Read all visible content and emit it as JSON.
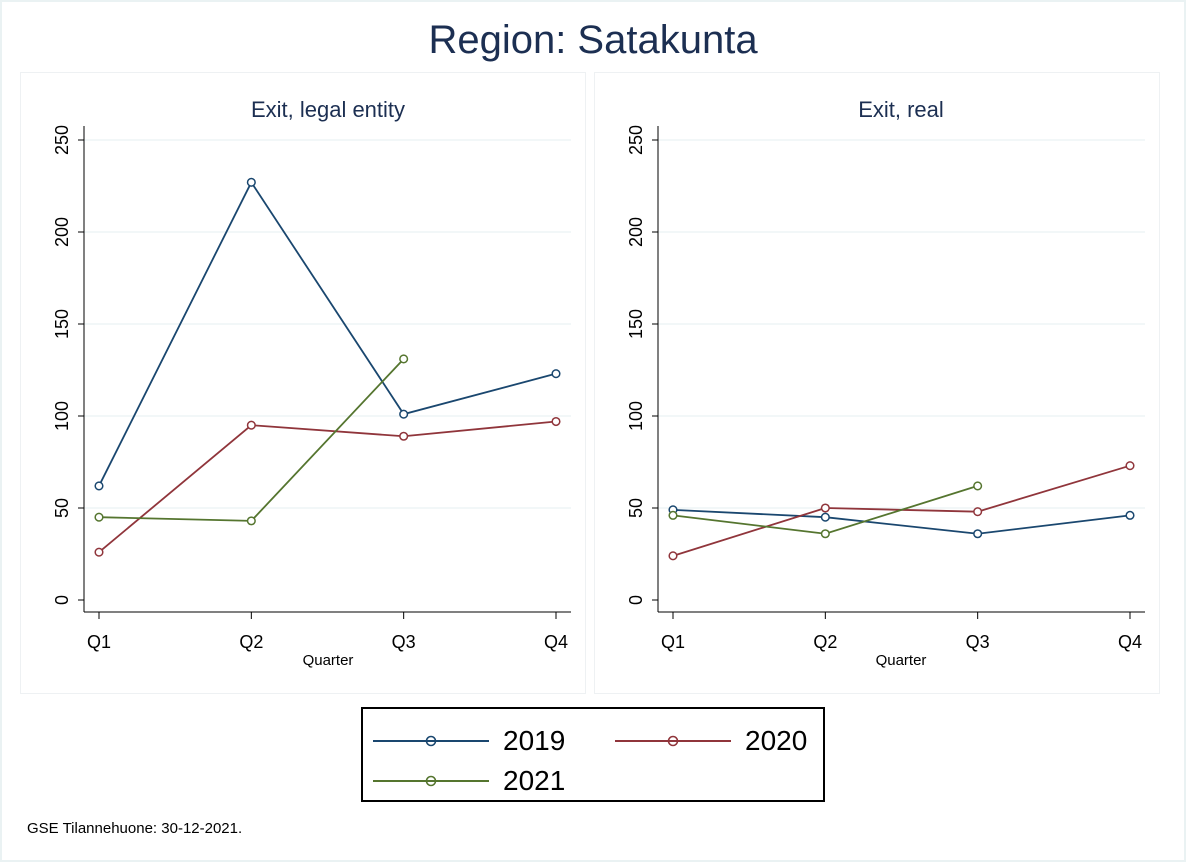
{
  "title": "Region: Satakunta",
  "footnote": "GSE Tilannehuone: 30-12-2021.",
  "colors": {
    "2019": "#1a476f",
    "2020": "#90353b",
    "2021": "#55752f",
    "grid": "#eaf2f3",
    "axis": "#000000"
  },
  "chart_data": [
    {
      "type": "line",
      "title": "Exit, legal entity",
      "xlabel": "Quarter",
      "ylabel": "",
      "categories": [
        "Q1",
        "Q2",
        "Q3",
        "Q4"
      ],
      "ylim": [
        0,
        250
      ],
      "yticks": [
        0,
        50,
        100,
        150,
        200,
        250
      ],
      "grid": true,
      "series": [
        {
          "name": "2019",
          "values": [
            62,
            227,
            101,
            123
          ]
        },
        {
          "name": "2020",
          "values": [
            26,
            95,
            89,
            97
          ]
        },
        {
          "name": "2021",
          "values": [
            45,
            43,
            131,
            null
          ]
        }
      ]
    },
    {
      "type": "line",
      "title": "Exit, real",
      "xlabel": "Quarter",
      "ylabel": "",
      "categories": [
        "Q1",
        "Q2",
        "Q3",
        "Q4"
      ],
      "ylim": [
        0,
        250
      ],
      "yticks": [
        0,
        50,
        100,
        150,
        200,
        250
      ],
      "grid": true,
      "series": [
        {
          "name": "2019",
          "values": [
            49,
            45,
            36,
            46
          ]
        },
        {
          "name": "2020",
          "values": [
            24,
            50,
            48,
            73
          ]
        },
        {
          "name": "2021",
          "values": [
            46,
            36,
            62,
            null
          ]
        }
      ]
    }
  ],
  "legend": {
    "position": "bottom",
    "items": [
      {
        "label": "2019"
      },
      {
        "label": "2020"
      },
      {
        "label": "2021"
      }
    ]
  }
}
